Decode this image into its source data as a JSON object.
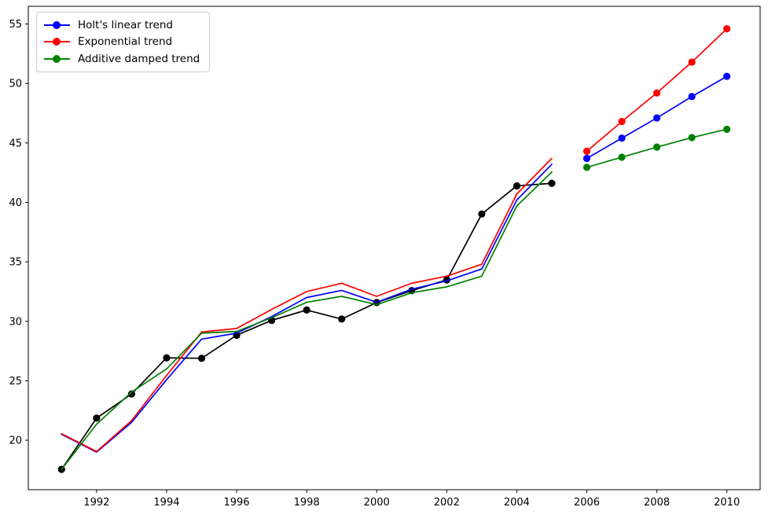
{
  "chart_data": {
    "type": "line",
    "title": "",
    "xlabel": "",
    "ylabel": "",
    "grid": false,
    "xlim": [
      1990.05,
      2010.95
    ],
    "ylim": [
      15.84,
      56.49
    ],
    "x_ticks": [
      1992,
      1994,
      1996,
      1998,
      2000,
      2002,
      2004,
      2006,
      2008,
      2010
    ],
    "y_ticks": [
      20,
      25,
      30,
      35,
      40,
      45,
      50,
      55
    ],
    "legend": {
      "position": "upper left",
      "items": [
        {
          "label": "Holt's linear trend",
          "color": "#0000ff"
        },
        {
          "label": "Exponential trend",
          "color": "#ff0000"
        },
        {
          "label": "Additive damped trend",
          "color": "#008000"
        }
      ]
    },
    "series": [
      {
        "id": "observed-data",
        "color": "#000000",
        "marker": "o",
        "x": [
          1991,
          1992,
          1993,
          1994,
          1995,
          1996,
          1997,
          1998,
          1999,
          2000,
          2001,
          2002,
          2003,
          2004,
          2005
        ],
        "y": [
          17.55,
          21.86,
          23.89,
          26.93,
          26.89,
          28.83,
          30.08,
          30.95,
          30.19,
          31.58,
          32.58,
          33.48,
          39.02,
          41.39,
          41.6
        ]
      },
      {
        "id": "holt-linear-fitted",
        "color": "#0000ff",
        "marker": null,
        "x": [
          1991,
          1992,
          1993,
          1994,
          1995,
          1996,
          1997,
          1998,
          1999,
          2000,
          2001,
          2002,
          2003,
          2004,
          2005
        ],
        "y": [
          20.5,
          19.0,
          21.5,
          25.1,
          28.5,
          29.0,
          30.4,
          32.0,
          32.6,
          31.6,
          32.7,
          33.4,
          34.4,
          40.2,
          43.2
        ]
      },
      {
        "id": "holt-linear-forecast",
        "color": "#0000ff",
        "marker": "o",
        "x": [
          2006,
          2007,
          2008,
          2009,
          2010
        ],
        "y": [
          43.7,
          45.4,
          47.1,
          48.9,
          50.6
        ]
      },
      {
        "id": "exponential-fitted",
        "color": "#ff0000",
        "marker": null,
        "x": [
          1991,
          1992,
          1993,
          1994,
          1995,
          1996,
          1997,
          1998,
          1999,
          2000,
          2001,
          2002,
          2003,
          2004,
          2005
        ],
        "y": [
          20.55,
          19.05,
          21.65,
          25.45,
          29.1,
          29.4,
          31.0,
          32.5,
          33.2,
          32.1,
          33.2,
          33.8,
          34.8,
          40.7,
          43.7
        ]
      },
      {
        "id": "exponential-forecast",
        "color": "#ff0000",
        "marker": "o",
        "x": [
          2006,
          2007,
          2008,
          2009,
          2010
        ],
        "y": [
          44.3,
          46.8,
          49.2,
          51.8,
          54.6
        ]
      },
      {
        "id": "additive-damped-fitted",
        "color": "#008000",
        "marker": null,
        "x": [
          1991,
          1992,
          1993,
          1994,
          1995,
          1996,
          1997,
          1998,
          1999,
          2000,
          2001,
          2002,
          2003,
          2004,
          2005
        ],
        "y": [
          17.55,
          21.35,
          24.05,
          26.0,
          29.0,
          29.15,
          30.3,
          31.6,
          32.1,
          31.4,
          32.4,
          32.9,
          33.8,
          39.7,
          42.55
        ]
      },
      {
        "id": "additive-damped-forecast",
        "color": "#008000",
        "marker": "o",
        "x": [
          2006,
          2007,
          2008,
          2009,
          2010
        ],
        "y": [
          42.95,
          43.8,
          44.65,
          45.45,
          46.15
        ]
      }
    ]
  }
}
